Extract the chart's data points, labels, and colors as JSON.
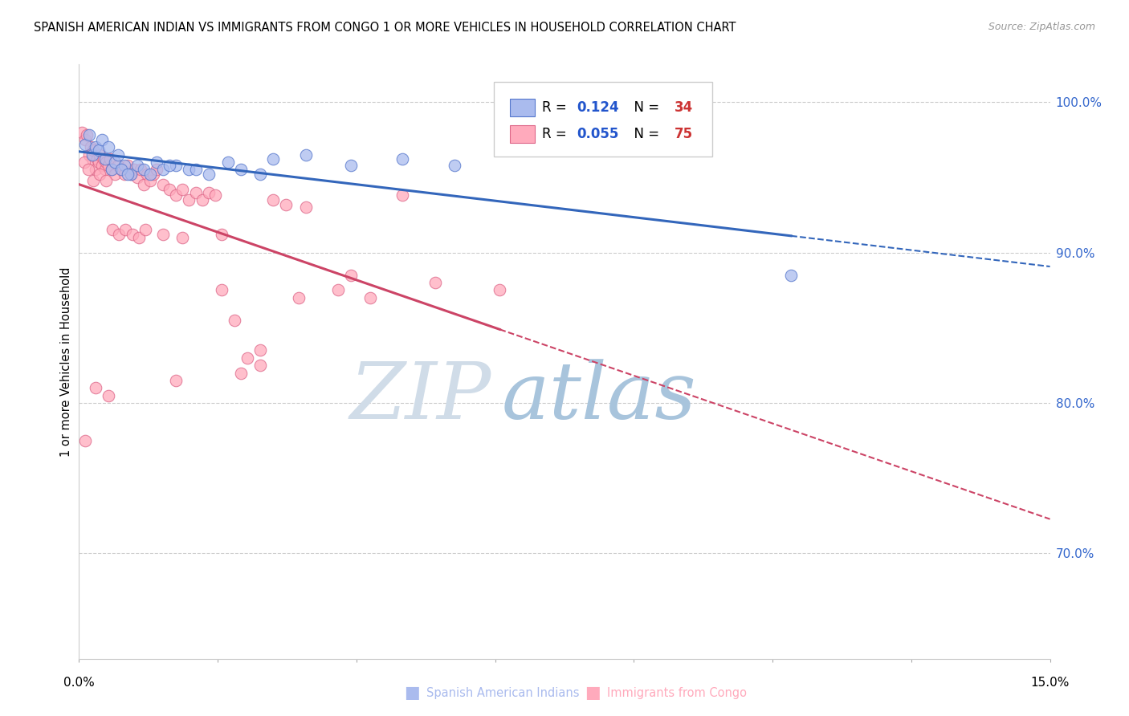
{
  "title": "SPANISH AMERICAN INDIAN VS IMMIGRANTS FROM CONGO 1 OR MORE VEHICLES IN HOUSEHOLD CORRELATION CHART",
  "source": "Source: ZipAtlas.com",
  "ylabel": "1 or more Vehicles in Household",
  "xmin": 0.0,
  "xmax": 15.0,
  "ymin": 63.0,
  "ymax": 102.5,
  "ytick_positions": [
    70.0,
    80.0,
    90.0,
    100.0
  ],
  "blue_R": 0.124,
  "blue_N": 34,
  "pink_R": 0.055,
  "pink_N": 75,
  "blue_label": "Spanish American Indians",
  "pink_label": "Immigrants from Congo",
  "blue_color": "#AABBEE",
  "pink_color": "#FFAABC",
  "blue_edge": "#5577CC",
  "pink_edge": "#DD6688",
  "watermark_zip": "ZIP",
  "watermark_atlas": "atlas",
  "watermark_color_zip": "#C8D8E8",
  "watermark_color_atlas": "#A8C4E0",
  "blue_x": [
    0.1,
    0.15,
    0.2,
    0.25,
    0.3,
    0.35,
    0.4,
    0.45,
    0.5,
    0.55,
    0.6,
    0.7,
    0.8,
    0.9,
    1.0,
    1.1,
    1.2,
    1.3,
    1.5,
    1.7,
    2.0,
    2.3,
    2.5,
    3.0,
    3.5,
    4.2,
    5.0,
    5.8,
    0.65,
    0.75,
    1.4,
    1.8,
    2.8,
    11.0
  ],
  "blue_y": [
    97.2,
    97.8,
    96.5,
    97.0,
    96.8,
    97.5,
    96.2,
    97.0,
    95.5,
    96.0,
    96.5,
    95.8,
    95.2,
    95.8,
    95.5,
    95.2,
    96.0,
    95.5,
    95.8,
    95.5,
    95.2,
    96.0,
    95.5,
    96.2,
    96.5,
    95.8,
    96.2,
    95.8,
    95.5,
    95.2,
    95.8,
    95.5,
    95.2,
    88.5
  ],
  "pink_x": [
    0.05,
    0.1,
    0.12,
    0.15,
    0.18,
    0.2,
    0.22,
    0.25,
    0.28,
    0.3,
    0.32,
    0.35,
    0.38,
    0.4,
    0.42,
    0.45,
    0.48,
    0.5,
    0.55,
    0.6,
    0.65,
    0.7,
    0.75,
    0.8,
    0.85,
    0.9,
    0.95,
    1.0,
    1.05,
    1.1,
    1.15,
    1.2,
    1.3,
    1.4,
    1.5,
    1.6,
    1.7,
    1.8,
    1.9,
    2.0,
    2.1,
    2.2,
    2.4,
    2.6,
    2.8,
    3.0,
    3.2,
    3.5,
    4.0,
    4.5,
    5.0,
    0.08,
    0.14,
    0.22,
    0.32,
    0.42,
    0.52,
    0.62,
    0.72,
    0.82,
    0.92,
    1.02,
    1.3,
    1.6,
    2.2,
    2.8,
    3.4,
    4.2,
    5.5,
    6.5,
    1.5,
    2.5,
    0.1,
    0.25,
    0.45
  ],
  "pink_y": [
    98.0,
    97.5,
    97.8,
    96.5,
    97.0,
    96.2,
    96.8,
    95.5,
    96.2,
    96.0,
    96.5,
    95.8,
    96.2,
    95.5,
    96.0,
    95.8,
    96.2,
    95.5,
    95.2,
    95.8,
    95.5,
    95.2,
    95.8,
    95.2,
    95.5,
    95.0,
    95.5,
    94.5,
    95.2,
    94.8,
    95.2,
    95.5,
    94.5,
    94.2,
    93.8,
    94.2,
    93.5,
    94.0,
    93.5,
    94.0,
    93.8,
    87.5,
    85.5,
    83.0,
    82.5,
    93.5,
    93.2,
    93.0,
    87.5,
    87.0,
    93.8,
    96.0,
    95.5,
    94.8,
    95.2,
    94.8,
    91.5,
    91.2,
    91.5,
    91.2,
    91.0,
    91.5,
    91.2,
    91.0,
    91.2,
    83.5,
    87.0,
    88.5,
    88.0,
    87.5,
    81.5,
    82.0,
    77.5,
    81.0,
    80.5
  ]
}
